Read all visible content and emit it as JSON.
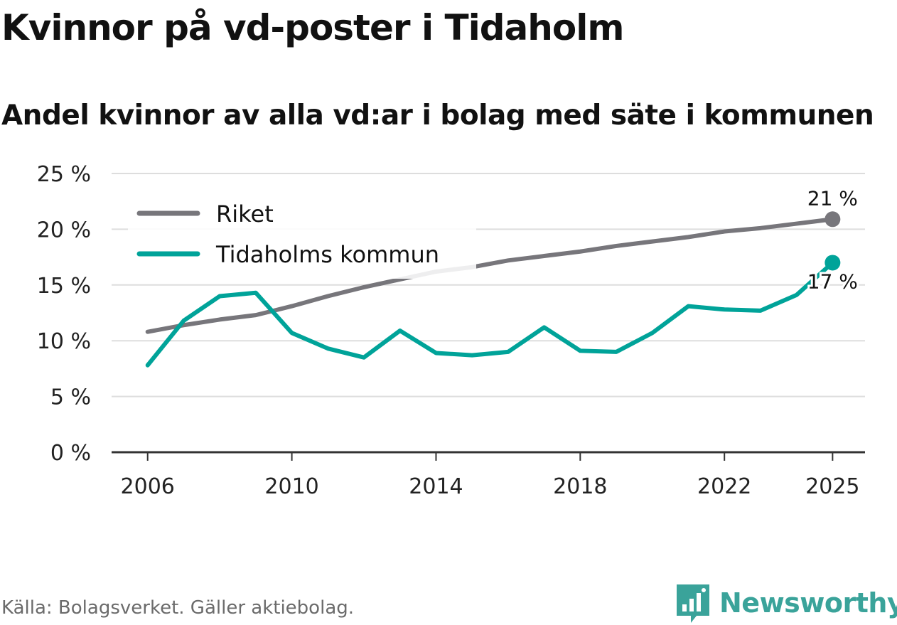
{
  "title": "Kvinnor på vd-poster i Tidaholm",
  "subtitle": "Andel kvinnor av alla vd:ar i bolag med säte i kommunen",
  "source": "Källa: Bolagsverket. Gäller aktiebolag.",
  "brand": {
    "name": "Newsworthy",
    "logo_icon": "bar-chart-speech-bubble-icon"
  },
  "colors": {
    "riket": "#77767b",
    "tidaholm": "#00a399",
    "grid": "#dddddd",
    "axis": "#333333"
  },
  "chart_data": {
    "type": "line",
    "title": "Kvinnor på vd-poster i Tidaholm",
    "subtitle": "Andel kvinnor av alla vd:ar i bolag med säte i kommunen",
    "xlabel": "",
    "ylabel": "",
    "x": [
      2006,
      2007,
      2008,
      2009,
      2010,
      2011,
      2012,
      2013,
      2014,
      2015,
      2016,
      2017,
      2018,
      2019,
      2020,
      2021,
      2022,
      2023,
      2024,
      2025
    ],
    "xlim": [
      2005,
      2025.9
    ],
    "ylim": [
      0,
      25
    ],
    "x_ticks": [
      "2006",
      "2010",
      "2014",
      "2018",
      "2022",
      "2025"
    ],
    "y_ticks": [
      "0 %",
      "5 %",
      "10 %",
      "15 %",
      "20 %",
      "25 %"
    ],
    "y_tick_values": [
      0,
      5,
      10,
      15,
      20,
      25
    ],
    "grid": true,
    "legend_position": "top-left",
    "series": [
      {
        "name": "Riket",
        "color": "#77767b",
        "values": [
          10.8,
          11.4,
          11.9,
          12.3,
          13.1,
          14.0,
          14.8,
          15.5,
          16.2,
          16.6,
          17.2,
          17.6,
          18.0,
          18.5,
          18.9,
          19.3,
          19.8,
          20.1,
          20.5,
          20.9
        ],
        "end_label": "21 %"
      },
      {
        "name": "Tidaholms kommun",
        "color": "#00a399",
        "values": [
          7.8,
          11.8,
          14.0,
          14.3,
          10.7,
          9.3,
          8.5,
          10.9,
          8.9,
          8.7,
          9.0,
          11.2,
          9.1,
          9.0,
          10.7,
          13.1,
          12.8,
          12.7,
          14.1,
          17.0
        ],
        "end_label": "17 %"
      }
    ]
  }
}
